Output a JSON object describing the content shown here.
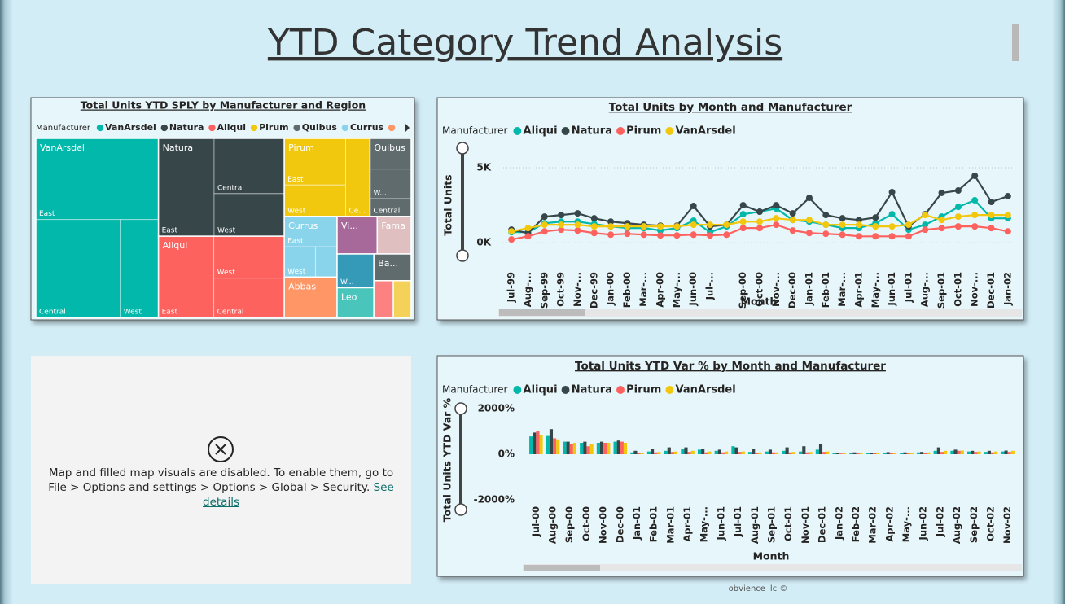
{
  "header": {
    "title": "YTD Category Trend Analysis"
  },
  "map_notice": {
    "message": "Map and filled map visuals are disabled. To enable them, go to File > Options and settings > Options > Global > Security.",
    "link": "See details"
  },
  "footer": "obvience llc ©",
  "chart_data": [
    {
      "type": "treemap",
      "title": "Total Units YTD SPLY by Manufacturer and Region",
      "legend_title": "Manufacturer",
      "groups": [
        {
          "name": "VanArsdel",
          "color": "#01b8aa",
          "children": [
            {
              "name": "East",
              "value": 15015
            },
            {
              "name": "Central",
              "value": 12480
            },
            {
              "name": "West",
              "value": 5640
            }
          ]
        },
        {
          "name": "Natura",
          "color": "#374649",
          "children": [
            {
              "name": "East",
              "value": 8216
            },
            {
              "name": "Central",
              "value": 5846
            },
            {
              "name": "West",
              "value": 4503
            }
          ]
        },
        {
          "name": "Aliqui",
          "color": "#fd625e",
          "children": [
            {
              "name": "East",
              "value": 6790
            },
            {
              "name": "West",
              "value": 4462
            },
            {
              "name": "Central",
              "value": 4176
            }
          ]
        },
        {
          "name": "Pirum",
          "color": "#f2c80f",
          "children": [
            {
              "name": "East",
              "value": 4316
            },
            {
              "name": "West",
              "value": 2905
            },
            {
              "name": "Ce...",
              "value": 2871
            }
          ]
        },
        {
          "name": "Quibus",
          "color": "#5f6b6d",
          "children": [
            {
              "name": null,
              "value": 1904
            },
            {
              "name": "W...",
              "value": 1836
            },
            {
              "name": "Central",
              "value": 1100
            }
          ]
        },
        {
          "name": "Currus",
          "color": "#8ad4eb",
          "children": [
            {
              "name": "East",
              "value": 2420
            },
            {
              "name": "West",
              "value": 1430
            },
            {
              "name": null,
              "value": 990
            }
          ]
        },
        {
          "name": "Abbas",
          "color": "#fe9666",
          "children": [
            {
              "name": null,
              "value": 3216
            }
          ]
        },
        {
          "name": "Vi...",
          "color": "#a66999",
          "children": [
            {
              "name": null,
              "value": 2278
            }
          ]
        },
        {
          "name": "Fama",
          "color": "#dfbfbf",
          "children": [
            {
              "name": null,
              "value": 1925
            }
          ]
        },
        {
          "name": null,
          "color": "#3599b8",
          "children": [
            {
              "name": "W...",
              "value": 1876
            }
          ]
        },
        {
          "name": "Leo",
          "color": "#4ac5bb",
          "children": [
            {
              "name": null,
              "value": 1650
            }
          ]
        },
        {
          "name": "Ba...",
          "color": "#5f6b6d",
          "children": [
            {
              "name": null,
              "value": 1504
            }
          ]
        },
        {
          "name": null,
          "color": "#fb8281",
          "children": [
            {
              "name": null,
              "value": 1081
            }
          ]
        },
        {
          "name": null,
          "color": "#f4d25a",
          "children": [
            {
              "name": null,
              "value": 990
            }
          ]
        }
      ]
    },
    {
      "type": "line",
      "title": "Total Units by Month and Manufacturer",
      "legend_title": "Manufacturer",
      "x_label": "Month",
      "y_label": "Total Units",
      "categories": [
        "Jul-99",
        "Aug-...",
        "Sep-99",
        "Oct-99",
        "Nov-...",
        "Dec-99",
        "Jan-00",
        "Feb-00",
        "Mar-...",
        "Apr-00",
        "May-...",
        "Jun-00",
        "Jul-...",
        null,
        "Sep-00",
        "Oct-00",
        "Nov-...",
        "Dec-00",
        "Jan-01",
        "Feb-01",
        "Mar-...",
        "Apr-01",
        "May-...",
        "Jun-01",
        "Jul-01",
        "Aug-...",
        "Sep-01",
        "Oct-01",
        "Nov-...",
        "Dec-01",
        "Jan-02"
      ],
      "series": [
        {
          "name": "Aliqui",
          "color": "#01b8aa",
          "values": [
            710,
            710,
            1300,
            1410,
            1410,
            1250,
            1090,
            980,
            980,
            820,
            980,
            1470,
            710,
            1090,
            1900,
            2070,
            2280,
            1520,
            1410,
            1200,
            980,
            980,
            1300,
            1900,
            870,
            1200,
            1740,
            2390,
            2830,
            1630,
            1630
          ]
        },
        {
          "name": "Natura",
          "color": "#374649",
          "values": [
            870,
            650,
            1740,
            1850,
            1960,
            1630,
            1410,
            1300,
            1200,
            1140,
            1140,
            2450,
            1090,
            1200,
            2500,
            2070,
            2500,
            1960,
            2990,
            1850,
            1630,
            1520,
            1680,
            3370,
            1090,
            1900,
            3320,
            3480,
            4460,
            2720,
            3100
          ]
        },
        {
          "name": "Pirum",
          "color": "#fd625e",
          "values": [
            220,
            430,
            760,
            870,
            820,
            650,
            540,
            600,
            540,
            490,
            490,
            540,
            490,
            540,
            980,
            980,
            1200,
            820,
            650,
            600,
            540,
            430,
            430,
            430,
            430,
            870,
            980,
            1090,
            1090,
            980,
            760
          ]
        },
        {
          "name": "VanArsdel",
          "color": "#f2c80f",
          "values": [
            760,
            980,
            1200,
            1200,
            1200,
            1090,
            1090,
            1090,
            1090,
            1090,
            1090,
            1200,
            1200,
            1200,
            1410,
            1410,
            1630,
            1520,
            1520,
            1200,
            1200,
            1200,
            1090,
            1090,
            1200,
            1850,
            1520,
            1740,
            1850,
            1850,
            1850
          ]
        }
      ],
      "ylim": [
        -800,
        6300
      ],
      "yticks": [
        {
          "value": 0,
          "label": "0K"
        },
        {
          "value": 5000,
          "label": "5K"
        }
      ],
      "grid": true
    },
    {
      "type": "bar",
      "title": "Total Units YTD Var % by Month and Manufacturer",
      "legend_title": "Manufacturer",
      "x_label": "Month",
      "y_label": "Total Units YTD Var %",
      "categories": [
        "Jul-00",
        "Aug-00",
        "Sep-00",
        "Oct-00",
        "Nov-00",
        "Dec-00",
        "Jan-01",
        "Feb-01",
        "Mar-01",
        "Apr-01",
        "May-...",
        "Jun-01",
        "Jul-01",
        "Aug-01",
        "Sep-01",
        "Oct-01",
        "Nov-01",
        "Dec-01",
        "Jan-02",
        "Feb-02",
        "Mar-02",
        "Apr-02",
        "May-...",
        "Jun-02",
        "Jul-02",
        "Aug-02",
        "Sep-02",
        "Oct-02",
        "Nov-02"
      ],
      "series": [
        {
          "name": "Aliqui",
          "color": "#01b8aa",
          "values": [
            780,
            800,
            550,
            500,
            500,
            550,
            80,
            120,
            150,
            220,
            200,
            150,
            350,
            100,
            120,
            150,
            120,
            200,
            40,
            50,
            60,
            60,
            60,
            80,
            150,
            150,
            120,
            100,
            120
          ]
        },
        {
          "name": "Natura",
          "color": "#374649",
          "values": [
            950,
            1100,
            550,
            550,
            550,
            600,
            150,
            250,
            300,
            300,
            250,
            200,
            300,
            250,
            200,
            300,
            350,
            450,
            60,
            80,
            70,
            90,
            80,
            100,
            300,
            200,
            150,
            150,
            160
          ]
        },
        {
          "name": "Pirum",
          "color": "#fd625e",
          "values": [
            1000,
            700,
            450,
            350,
            500,
            550,
            50,
            80,
            100,
            100,
            80,
            80,
            100,
            60,
            80,
            80,
            80,
            100,
            30,
            40,
            40,
            50,
            50,
            60,
            100,
            150,
            100,
            80,
            100
          ]
        },
        {
          "name": "VanArsdel",
          "color": "#f2c80f",
          "values": [
            850,
            650,
            500,
            450,
            500,
            500,
            60,
            100,
            120,
            150,
            120,
            120,
            120,
            80,
            80,
            100,
            100,
            120,
            40,
            40,
            50,
            50,
            60,
            80,
            150,
            160,
            120,
            120,
            150
          ]
        }
      ],
      "ylim": [
        -2300,
        2300
      ],
      "yticks": [
        {
          "value": 2000,
          "label": "2000%"
        },
        {
          "value": 0,
          "label": "0%"
        },
        {
          "value": -2000,
          "label": "-2000%"
        }
      ],
      "grid": false
    }
  ]
}
